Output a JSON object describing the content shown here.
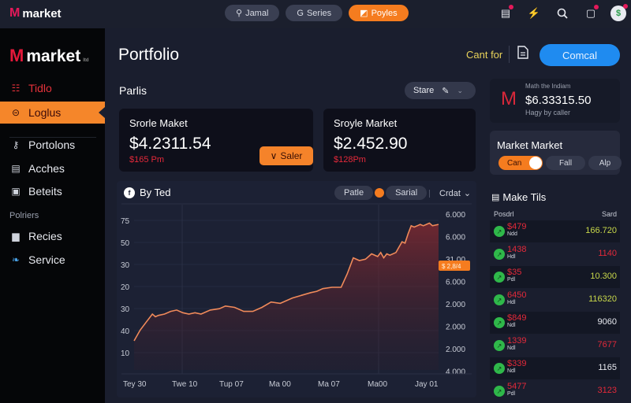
{
  "topbar": {
    "brand": "market",
    "pills": [
      {
        "icon": "search-icon",
        "glyph": "⚲",
        "label": "Jamal",
        "active": false
      },
      {
        "icon": "g-icon",
        "glyph": "G",
        "label": "Series",
        "active": false
      },
      {
        "icon": "tag-icon",
        "glyph": "◩",
        "label": "Poyles",
        "active": true
      }
    ],
    "icons": [
      "building-icon",
      "bolt-icon",
      "search-icon",
      "notification-icon",
      "avatar"
    ]
  },
  "sidebar": {
    "brand": "market",
    "brand_suffix": "ltd",
    "items": [
      {
        "label": "Tidlo",
        "icon": "grid-icon",
        "glyph": "☷"
      },
      {
        "label": "Loglus",
        "icon": "circle-minus-icon",
        "glyph": "⊝"
      },
      {
        "label": "Portolons",
        "icon": "key-icon",
        "glyph": "⚷"
      },
      {
        "label": "Acches",
        "icon": "briefcase-icon",
        "glyph": "▤"
      },
      {
        "label": "Beteits",
        "icon": "calendar-icon",
        "glyph": "▣"
      }
    ],
    "section_label": "Polriers",
    "section_items": [
      {
        "label": "Recies",
        "icon": "bars-icon",
        "glyph": "▆"
      },
      {
        "label": "Service",
        "icon": "bird-icon",
        "glyph": "❧"
      }
    ]
  },
  "header": {
    "title": "Portfolio",
    "cant_for": "Cant for",
    "cancel_label": "Comcal"
  },
  "section": {
    "title": "Parlis",
    "stare_label": "Stare"
  },
  "cards": [
    {
      "label": "Srorle Maket",
      "value": "$4.2311.54",
      "delta": "$165 Pm",
      "button": "Saler"
    },
    {
      "label": "Sroyle Market",
      "value": "$2.452.90",
      "delta": "$128Pm"
    }
  ],
  "chart": {
    "title": "By Ted",
    "seg_left": "Patle",
    "seg_right": "Sarial",
    "dropdown": "Crdat",
    "badge": "$ 2,8/4",
    "accent": "#f57c1f"
  },
  "chart_data": {
    "type": "area",
    "title": "By Ted",
    "x_tick_labels": [
      "Tey 30",
      "Twe 10",
      "Tup 07",
      "Ma 00",
      "Ma 07",
      "Ma00",
      "Jay 01"
    ],
    "y_left_ticks": [
      "75",
      "50",
      "30",
      "20",
      "30",
      "40",
      "10"
    ],
    "y_right_ticks": [
      "6.000",
      "6.000",
      "31.00",
      "6.000",
      "2.000",
      "2.000",
      "2.000",
      "4.000"
    ],
    "series": [
      {
        "name": "Portfolio",
        "x": [
          0,
          0.02,
          0.04,
          0.06,
          0.07,
          0.08,
          0.1,
          0.12,
          0.14,
          0.16,
          0.18,
          0.2,
          0.22,
          0.25,
          0.28,
          0.3,
          0.33,
          0.36,
          0.39,
          0.42,
          0.45,
          0.48,
          0.5,
          0.52,
          0.55,
          0.58,
          0.6,
          0.62,
          0.65,
          0.68,
          0.7,
          0.72,
          0.74,
          0.76,
          0.78,
          0.8,
          0.81,
          0.82,
          0.83,
          0.84,
          0.86,
          0.87,
          0.88,
          0.89,
          0.9,
          0.91,
          0.92,
          0.93,
          0.94,
          0.95,
          0.96,
          0.97,
          0.98,
          1.0
        ],
        "y": [
          10,
          18,
          24,
          30,
          28,
          29,
          30,
          32,
          33,
          31,
          30,
          31,
          30,
          33,
          34,
          36,
          35,
          32,
          32,
          35,
          39,
          38,
          40,
          42,
          44,
          46,
          47,
          49,
          50,
          50,
          60,
          72,
          70,
          71,
          75,
          73,
          76,
          72,
          75,
          74,
          76,
          80,
          84,
          83,
          90,
          96,
          95,
          96,
          97,
          96,
          97,
          98,
          96,
          97
        ]
      }
    ],
    "ylim": [
      0,
      100
    ]
  },
  "right": {
    "summary_small": "Math the Indiam",
    "summary_value": "$6.33315.50",
    "summary_sub": "Hagy by caller",
    "market_title": "Market Market",
    "toggle": [
      "Can",
      "Fall",
      "Alp"
    ],
    "list_title": "Make Tils",
    "col_left": "Posdrl",
    "col_right": "Sard",
    "rows": [
      {
        "price": "$479",
        "sub": "Ndd",
        "amount": "166.720",
        "color": "#c8d84a"
      },
      {
        "price": "1438",
        "sub": "Hdl",
        "amount": "1140",
        "color": "#e4293a"
      },
      {
        "price": "$35",
        "sub": "Pdl",
        "amount": "10.300",
        "color": "#c8d84a"
      },
      {
        "price": "6450",
        "sub": "Hdl",
        "amount": "116320",
        "color": "#c8d84a"
      },
      {
        "price": "$849",
        "sub": "Ndl",
        "amount": "9060",
        "color": "#e8eaf0"
      },
      {
        "price": "1339",
        "sub": "Ndl",
        "amount": "7677",
        "color": "#e4293a"
      },
      {
        "price": "$339",
        "sub": "Ndl",
        "amount": "1165",
        "color": "#e8eaf0"
      },
      {
        "price": "5477",
        "sub": "Pdl",
        "amount": "3123",
        "color": "#e4293a"
      }
    ]
  }
}
